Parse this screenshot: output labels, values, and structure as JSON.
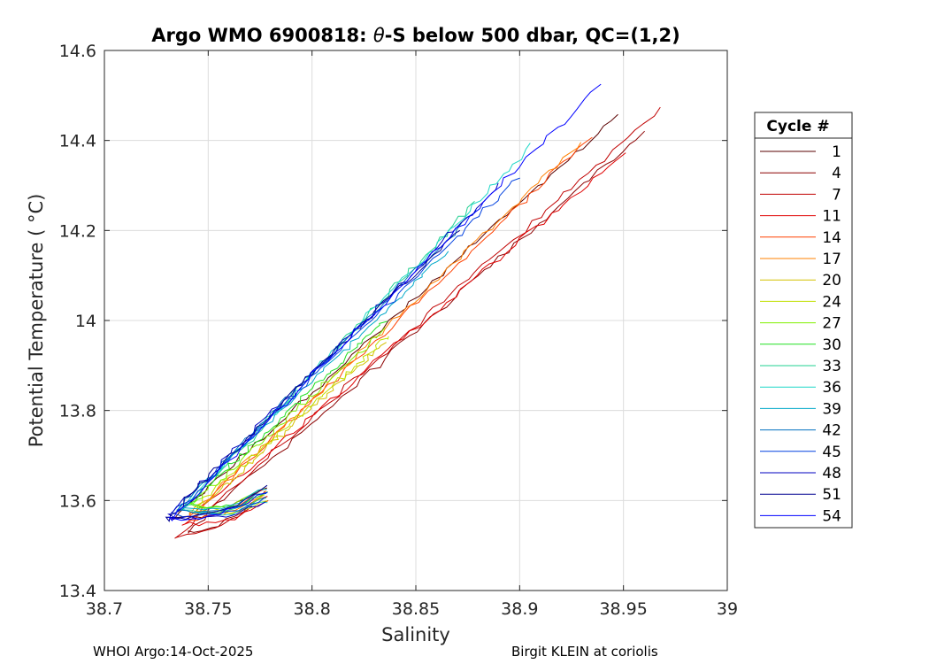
{
  "chart_data": {
    "type": "line",
    "title_prefix": "Argo WMO 6900818: ",
    "title_theta": "θ",
    "title_suffix": "-S below 500 dbar,  QC=(1,2)",
    "xlabel": "Salinity",
    "ylabel": "Potential Temperature ( °C)",
    "xlim": [
      38.7,
      39.0
    ],
    "ylim": [
      13.4,
      14.6
    ],
    "xticks": [
      "38.7",
      "38.75",
      "38.8",
      "38.85",
      "38.9",
      "38.95",
      "39"
    ],
    "yticks": [
      "13.4",
      "13.6",
      "13.8",
      "14",
      "14.2",
      "14.4",
      "14.6"
    ],
    "grid": true,
    "legend_title": "Cycle #",
    "legend_position": "right",
    "series": [
      {
        "name": "1",
        "color": "#5a0000",
        "s0": 38.733,
        "t0": 13.56,
        "s1": 38.948,
        "t1": 14.46
      },
      {
        "name": "4",
        "color": "#8c0000",
        "s0": 38.74,
        "t0": 13.53,
        "s1": 38.96,
        "t1": 14.42
      },
      {
        "name": "7",
        "color": "#c00000",
        "s0": 38.735,
        "t0": 13.52,
        "s1": 38.968,
        "t1": 14.47
      },
      {
        "name": "11",
        "color": "#e00000",
        "s0": 38.738,
        "t0": 13.55,
        "s1": 38.95,
        "t1": 14.37
      },
      {
        "name": "14",
        "color": "#ff4000",
        "s0": 38.74,
        "t0": 13.56,
        "s1": 38.935,
        "t1": 14.41
      },
      {
        "name": "17",
        "color": "#ff8000",
        "s0": 38.742,
        "t0": 13.57,
        "s1": 38.93,
        "t1": 14.4
      },
      {
        "name": "20",
        "color": "#d4c000",
        "s0": 38.745,
        "t0": 13.58,
        "s1": 38.835,
        "t1": 13.95
      },
      {
        "name": "24",
        "color": "#c0e000",
        "s0": 38.745,
        "t0": 13.59,
        "s1": 38.838,
        "t1": 13.97
      },
      {
        "name": "27",
        "color": "#80f000",
        "s0": 38.742,
        "t0": 13.59,
        "s1": 38.835,
        "t1": 13.98
      },
      {
        "name": "30",
        "color": "#20e020",
        "s0": 38.74,
        "t0": 13.59,
        "s1": 38.835,
        "t1": 14.0
      },
      {
        "name": "33",
        "color": "#20d090",
        "s0": 38.738,
        "t0": 13.58,
        "s1": 38.878,
        "t1": 14.26
      },
      {
        "name": "36",
        "color": "#20d8c8",
        "s0": 38.737,
        "t0": 13.58,
        "s1": 38.906,
        "t1": 14.39
      },
      {
        "name": "39",
        "color": "#00a8c8",
        "s0": 38.735,
        "t0": 13.58,
        "s1": 38.865,
        "t1": 14.15
      },
      {
        "name": "42",
        "color": "#0070c0",
        "s0": 38.735,
        "t0": 13.58,
        "s1": 38.88,
        "t1": 14.25
      },
      {
        "name": "45",
        "color": "#0040e0",
        "s0": 38.733,
        "t0": 13.57,
        "s1": 38.9,
        "t1": 14.32
      },
      {
        "name": "48",
        "color": "#0000c0",
        "s0": 38.731,
        "t0": 13.565,
        "s1": 38.89,
        "t1": 14.3
      },
      {
        "name": "51",
        "color": "#000090",
        "s0": 38.73,
        "t0": 13.56,
        "s1": 38.87,
        "t1": 14.2
      },
      {
        "name": "54",
        "color": "#0000ff",
        "s0": 38.732,
        "t0": 13.56,
        "s1": 38.938,
        "t1": 14.52
      }
    ],
    "return_branch": {
      "s_tip": 38.778,
      "t_tip": 13.63
    }
  },
  "footer": {
    "left": "WHOI Argo:14-Oct-2025",
    "right": "Birgit KLEIN at coriolis"
  }
}
